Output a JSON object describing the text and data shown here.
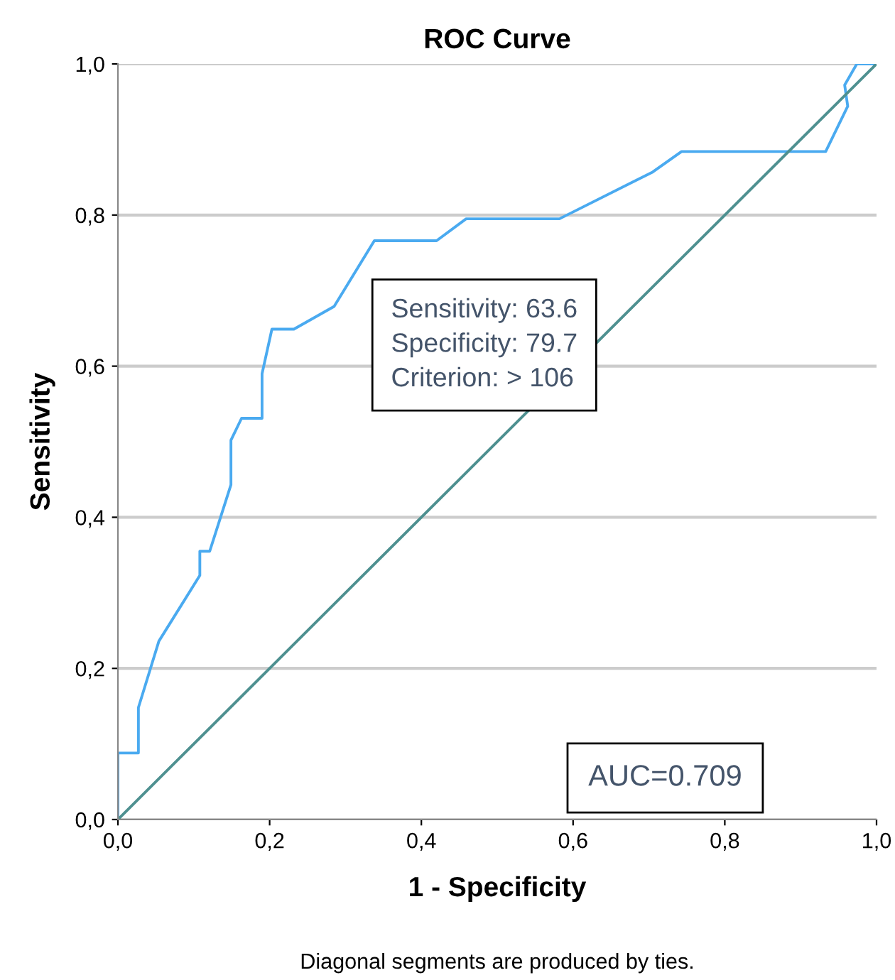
{
  "chart_data": {
    "type": "line",
    "title": "ROC Curve",
    "xlabel": "1 - Specificity",
    "ylabel": "Sensitivity",
    "series": [
      {
        "color": "#4aaaf0",
        "x": [
          0,
          0,
          0.027,
          0.027,
          0.054,
          0.108,
          0.108,
          0.121,
          0.149,
          0.149,
          0.163,
          0.19,
          0.19,
          0.203,
          0.232,
          0.285,
          0.338,
          0.42,
          0.459,
          0.582,
          0.705,
          0.743,
          0.933,
          0.962,
          0.958,
          0.974,
          1.0
        ],
        "values": [
          0,
          0.088,
          0.088,
          0.148,
          0.236,
          0.323,
          0.355,
          0.355,
          0.443,
          0.502,
          0.531,
          0.531,
          0.59,
          0.649,
          0.649,
          0.679,
          0.766,
          0.766,
          0.795,
          0.795,
          0.857,
          0.884,
          0.884,
          0.944,
          0.972,
          1.0,
          1.0
        ]
      },
      {
        "color": "#4e9090",
        "x": [
          0,
          1
        ],
        "values": [
          0,
          1
        ]
      }
    ],
    "xlim": [
      0,
      1
    ],
    "ylim": [
      0,
      1
    ],
    "xticks": [
      {
        "value": 0,
        "label": "0,0"
      },
      {
        "value": 0.2,
        "label": "0,2"
      },
      {
        "value": 0.4,
        "label": "0,4"
      },
      {
        "value": 0.6,
        "label": "0,6"
      },
      {
        "value": 0.8,
        "label": "0,8"
      },
      {
        "value": 1,
        "label": "1,0"
      }
    ],
    "yticks": [
      {
        "value": 0,
        "label": "0,0"
      },
      {
        "value": 0.2,
        "label": "0,2"
      },
      {
        "value": 0.4,
        "label": "0,4"
      },
      {
        "value": 0.6,
        "label": "0,6"
      },
      {
        "value": 0.8,
        "label": "0,8"
      },
      {
        "value": 1,
        "label": "1,0"
      }
    ],
    "grid": "y",
    "legend": false,
    "marker": "none",
    "line_style": "solid",
    "annotations": [
      "Sensitivity: 63.6\nSpecificity: 79.7\nCriterion: > 106",
      "AUC=0.709",
      "Diagonal segments are produced by ties."
    ]
  }
}
